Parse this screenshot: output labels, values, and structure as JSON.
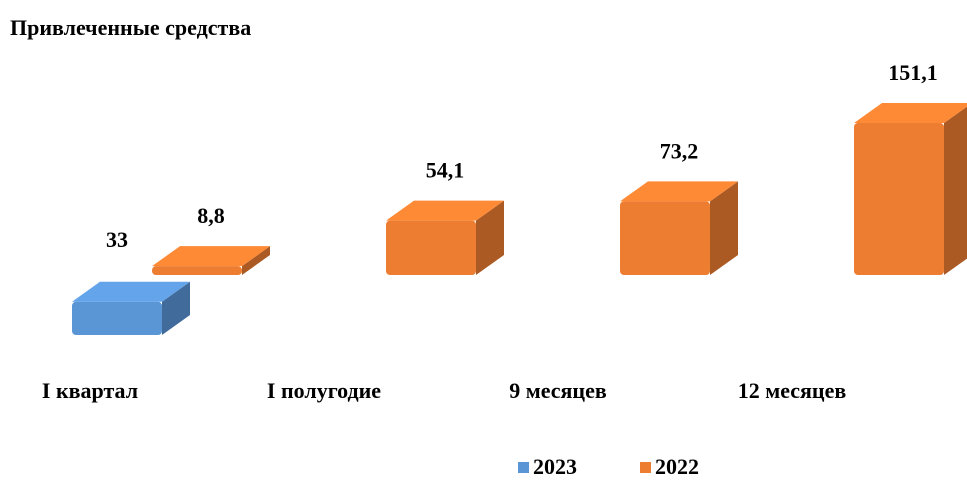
{
  "chart_data": {
    "type": "bar3d",
    "title": "Привлеченные средства",
    "categories": [
      "I квартал",
      "I полугодие",
      "9 месяцев",
      "12 месяцев"
    ],
    "series": [
      {
        "name": "2023",
        "color": "#5a95d6",
        "values": [
          33,
          null,
          null,
          null
        ],
        "value_labels": [
          "33",
          null,
          null,
          null
        ]
      },
      {
        "name": "2022",
        "color": "#ed7d31",
        "values": [
          8.8,
          54.1,
          73.2,
          151.1
        ],
        "value_labels": [
          "8,8",
          "54,1",
          "73,2",
          "151,1"
        ]
      }
    ],
    "legend": "bottom"
  }
}
